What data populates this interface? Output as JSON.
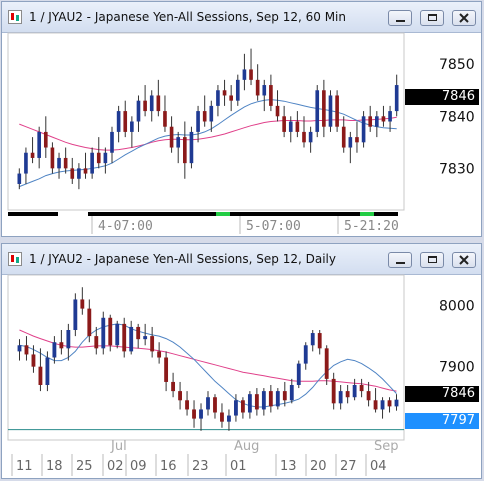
{
  "windows": [
    {
      "title": "1 / JYAU2 - Japanese Yen-All Sessions, Sep 12, 60 Min",
      "buttons": {
        "minimize": "minimize",
        "maximize": "maximize",
        "close": "close"
      }
    },
    {
      "title": "1 / JYAU2 - Japanese Yen-All Sessions, Sep 12, Daily",
      "buttons": {
        "minimize": "minimize",
        "maximize": "maximize",
        "close": "close"
      }
    }
  ],
  "icons": {
    "window_icon": "chart-window-icon",
    "close": "close-icon",
    "minimize": "minimize-icon",
    "maximize": "maximize-icon"
  },
  "colors": {
    "up": "#1f3a93",
    "down": "#8b1a1a",
    "ma_pink": "#e0408a",
    "ma_blue": "#4f84c4",
    "hline": "#2a8c8c",
    "price_tag": "#000000",
    "level_tag": "#1e90ff"
  },
  "chart_data": [
    {
      "type": "candlestick",
      "title": "1 / JYAU2 - Japanese Yen-All Sessions, Sep 12, 60 Min",
      "ylim": [
        7822,
        7856
      ],
      "y_ticks": [
        7850,
        7840,
        7830
      ],
      "x_labels": [
        "4-07:00",
        "5-07:00",
        "5-21:20"
      ],
      "last_price": "7846",
      "ohlc": [
        [
          7827,
          7830,
          7826,
          7829
        ],
        [
          7829,
          7834,
          7827,
          7833
        ],
        [
          7833,
          7836,
          7831,
          7832
        ],
        [
          7832,
          7838,
          7830,
          7837
        ],
        [
          7837,
          7840,
          7832,
          7834
        ],
        [
          7834,
          7835,
          7829,
          7830
        ],
        [
          7830,
          7833,
          7828,
          7832
        ],
        [
          7832,
          7834,
          7829,
          7830
        ],
        [
          7830,
          7832,
          7827,
          7828
        ],
        [
          7828,
          7831,
          7826,
          7830
        ],
        [
          7830,
          7833,
          7828,
          7829
        ],
        [
          7829,
          7834,
          7828,
          7833
        ],
        [
          7833,
          7836,
          7830,
          7831
        ],
        [
          7831,
          7834,
          7829,
          7833
        ],
        [
          7833,
          7838,
          7831,
          7837
        ],
        [
          7837,
          7842,
          7835,
          7841
        ],
        [
          7841,
          7843,
          7836,
          7837
        ],
        [
          7837,
          7840,
          7834,
          7839
        ],
        [
          7839,
          7844,
          7837,
          7843
        ],
        [
          7843,
          7846,
          7840,
          7841
        ],
        [
          7841,
          7845,
          7839,
          7844
        ],
        [
          7844,
          7847,
          7840,
          7841
        ],
        [
          7841,
          7844,
          7837,
          7838
        ],
        [
          7838,
          7840,
          7833,
          7834
        ],
        [
          7834,
          7837,
          7831,
          7836
        ],
        [
          7836,
          7839,
          7828,
          7831
        ],
        [
          7831,
          7838,
          7830,
          7837
        ],
        [
          7837,
          7842,
          7835,
          7841
        ],
        [
          7841,
          7844,
          7838,
          7839
        ],
        [
          7839,
          7843,
          7837,
          7842
        ],
        [
          7842,
          7846,
          7840,
          7845
        ],
        [
          7845,
          7847,
          7842,
          7844
        ],
        [
          7844,
          7846,
          7841,
          7843
        ],
        [
          7843,
          7848,
          7842,
          7847
        ],
        [
          7847,
          7852,
          7845,
          7849
        ],
        [
          7849,
          7853,
          7846,
          7847
        ],
        [
          7847,
          7850,
          7843,
          7844
        ],
        [
          7844,
          7847,
          7841,
          7846
        ],
        [
          7846,
          7848,
          7841,
          7842
        ],
        [
          7842,
          7845,
          7839,
          7840
        ],
        [
          7840,
          7842,
          7836,
          7837
        ],
        [
          7837,
          7840,
          7835,
          7839
        ],
        [
          7839,
          7841,
          7836,
          7837
        ],
        [
          7837,
          7840,
          7834,
          7835
        ],
        [
          7835,
          7838,
          7833,
          7837
        ],
        [
          7837,
          7846,
          7836,
          7845
        ],
        [
          7845,
          7847,
          7836,
          7838
        ],
        [
          7838,
          7845,
          7837,
          7844
        ],
        [
          7844,
          7845,
          7837,
          7838
        ],
        [
          7838,
          7840,
          7833,
          7834
        ],
        [
          7834,
          7837,
          7831,
          7836
        ],
        [
          7836,
          7839,
          7833,
          7835
        ],
        [
          7835,
          7841,
          7834,
          7840
        ],
        [
          7840,
          7842,
          7837,
          7838
        ],
        [
          7838,
          7841,
          7836,
          7840
        ],
        [
          7840,
          7842,
          7838,
          7839
        ],
        [
          7839,
          7842,
          7837,
          7841
        ],
        [
          7841,
          7848,
          7840,
          7846
        ]
      ],
      "ma_slow": [
        7838.5,
        7838,
        7837.5,
        7837,
        7836.5,
        7836,
        7835.5,
        7835,
        7834.6,
        7834.3,
        7834,
        7833.8,
        7833.6,
        7833.5,
        7833.5,
        7833.6,
        7833.8,
        7834,
        7834.3,
        7834.6,
        7835,
        7835.3,
        7835.5,
        7835.6,
        7835.6,
        7835.5,
        7835.5,
        7835.6,
        7835.8,
        7836,
        7836.3,
        7836.6,
        7837,
        7837.4,
        7837.8,
        7838.2,
        7838.5,
        7838.8,
        7839,
        7839.1,
        7839.2,
        7839.2,
        7839.2,
        7839.1,
        7839.1,
        7839.2,
        7839.2,
        7839.3,
        7839.3,
        7839.3,
        7839.2,
        7839.2,
        7839.3,
        7839.3,
        7839.4,
        7839.5,
        7839.6,
        7839.8
      ],
      "ma_fast": [
        7826.5,
        7827,
        7827.5,
        7828,
        7828.6,
        7829,
        7829.3,
        7829.5,
        7829.6,
        7829.7,
        7829.8,
        7830,
        7830.2,
        7830.5,
        7831,
        7831.8,
        7832.6,
        7833.3,
        7834,
        7834.6,
        7835.2,
        7835.8,
        7836.2,
        7836.4,
        7836.5,
        7836.4,
        7836.4,
        7836.6,
        7837,
        7837.6,
        7838.4,
        7839.3,
        7840.2,
        7841,
        7841.8,
        7842.4,
        7842.8,
        7843.1,
        7843.2,
        7843.1,
        7842.9,
        7842.6,
        7842.3,
        7842,
        7841.7,
        7841.5,
        7841.3,
        7841.1,
        7840.8,
        7840.4,
        7839.8,
        7839.2,
        7838.7,
        7838.3,
        7838,
        7837.8,
        7837.7,
        7837.6
      ]
    },
    {
      "type": "candlestick",
      "title": "1 / JYAU2 - Japanese Yen-All Sessions, Sep 12, Daily",
      "ylim": [
        7780,
        8050
      ],
      "y_ticks": [
        8000,
        7900
      ],
      "x_labels_top": [
        "Jul",
        "Aug",
        "Sep"
      ],
      "x_labels": [
        "11",
        "18",
        "25",
        "02",
        "09",
        "16",
        "23",
        "01",
        "13",
        "20",
        "27",
        "04"
      ],
      "last_price": "7846",
      "level_price": "7797",
      "level_line": 7797,
      "ohlc": [
        [
          7925,
          7945,
          7910,
          7935
        ],
        [
          7935,
          7950,
          7910,
          7920
        ],
        [
          7920,
          7935,
          7890,
          7900
        ],
        [
          7900,
          7930,
          7860,
          7870
        ],
        [
          7870,
          7925,
          7860,
          7915
        ],
        [
          7915,
          7950,
          7905,
          7940
        ],
        [
          7940,
          7960,
          7920,
          7930
        ],
        [
          7930,
          7970,
          7910,
          7960
        ],
        [
          7960,
          8020,
          7950,
          8010
        ],
        [
          8010,
          8030,
          7985,
          7995
        ],
        [
          7995,
          8010,
          7940,
          7950
        ],
        [
          7950,
          7965,
          7920,
          7930
        ],
        [
          7930,
          7990,
          7920,
          7980
        ],
        [
          7980,
          7985,
          7925,
          7935
        ],
        [
          7935,
          7975,
          7930,
          7970
        ],
        [
          7970,
          7980,
          7915,
          7925
        ],
        [
          7925,
          7975,
          7920,
          7965
        ],
        [
          7965,
          7970,
          7930,
          7945
        ],
        [
          7945,
          7970,
          7935,
          7950
        ],
        [
          7950,
          7965,
          7915,
          7925
        ],
        [
          7925,
          7940,
          7905,
          7915
        ],
        [
          7915,
          7925,
          7860,
          7875
        ],
        [
          7875,
          7890,
          7850,
          7860
        ],
        [
          7860,
          7875,
          7830,
          7845
        ],
        [
          7845,
          7860,
          7820,
          7830
        ],
        [
          7830,
          7845,
          7800,
          7815
        ],
        [
          7815,
          7840,
          7795,
          7830
        ],
        [
          7830,
          7860,
          7820,
          7850
        ],
        [
          7850,
          7855,
          7815,
          7825
        ],
        [
          7825,
          7840,
          7800,
          7810
        ],
        [
          7810,
          7830,
          7795,
          7820
        ],
        [
          7820,
          7855,
          7810,
          7845
        ],
        [
          7845,
          7850,
          7815,
          7825
        ],
        [
          7825,
          7860,
          7815,
          7855
        ],
        [
          7855,
          7865,
          7820,
          7830
        ],
        [
          7830,
          7865,
          7820,
          7860
        ],
        [
          7860,
          7870,
          7825,
          7835
        ],
        [
          7835,
          7865,
          7830,
          7860
        ],
        [
          7860,
          7875,
          7835,
          7845
        ],
        [
          7845,
          7880,
          7840,
          7870
        ],
        [
          7870,
          7910,
          7865,
          7905
        ],
        [
          7905,
          7940,
          7895,
          7935
        ],
        [
          7935,
          7960,
          7925,
          7955
        ],
        [
          7955,
          7960,
          7920,
          7930
        ],
        [
          7930,
          7935,
          7870,
          7880
        ],
        [
          7880,
          7890,
          7830,
          7840
        ],
        [
          7840,
          7870,
          7830,
          7860
        ],
        [
          7860,
          7870,
          7840,
          7850
        ],
        [
          7850,
          7880,
          7845,
          7870
        ],
        [
          7870,
          7880,
          7850,
          7860
        ],
        [
          7860,
          7875,
          7835,
          7845
        ],
        [
          7845,
          7865,
          7825,
          7830
        ],
        [
          7830,
          7850,
          7815,
          7845
        ],
        [
          7845,
          7850,
          7825,
          7835
        ],
        [
          7835,
          7855,
          7828,
          7846
        ]
      ],
      "ma_slow": [
        7960,
        7955,
        7950,
        7946,
        7942,
        7938,
        7935,
        7933,
        7932,
        7932,
        7933,
        7934,
        7934,
        7934,
        7933,
        7932,
        7931,
        7930,
        7929,
        7928,
        7926,
        7924,
        7921,
        7918,
        7915,
        7912,
        7909,
        7906,
        7903,
        7900,
        7897,
        7894,
        7891,
        7889,
        7887,
        7885,
        7883,
        7881,
        7879,
        7877,
        7876,
        7876,
        7876,
        7877,
        7877,
        7876,
        7875,
        7874,
        7873,
        7872,
        7870,
        7868,
        7865,
        7862,
        7860
      ],
      "ma_fast": [
        7935,
        7933,
        7928,
        7922,
        7915,
        7910,
        7910,
        7915,
        7925,
        7940,
        7952,
        7960,
        7965,
        7968,
        7970,
        7968,
        7962,
        7958,
        7955,
        7952,
        7950,
        7946,
        7940,
        7932,
        7922,
        7912,
        7900,
        7888,
        7876,
        7866,
        7856,
        7846,
        7840,
        7836,
        7834,
        7834,
        7836,
        7838,
        7840,
        7843,
        7847,
        7855,
        7866,
        7880,
        7892,
        7902,
        7908,
        7912,
        7910,
        7905,
        7898,
        7890,
        7880,
        7868,
        7856
      ]
    }
  ]
}
